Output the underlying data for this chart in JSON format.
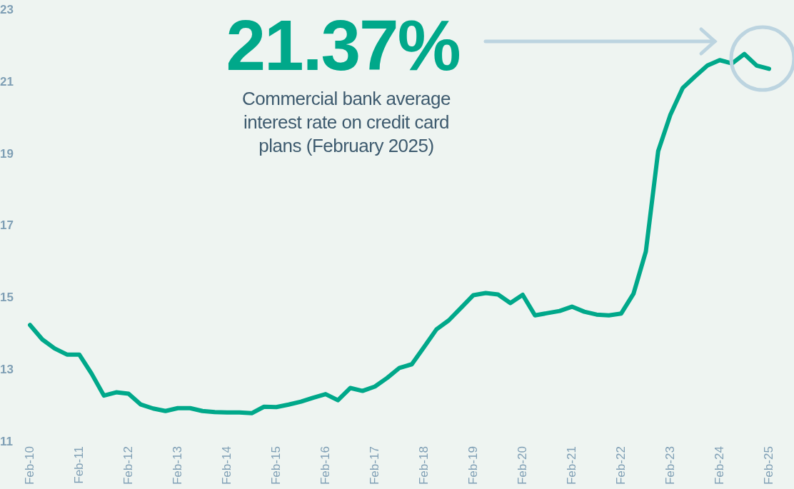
{
  "chart_data": {
    "type": "line",
    "categories": [
      "Feb-10",
      null,
      null,
      null,
      "Feb-11",
      null,
      null,
      null,
      "Feb-12",
      null,
      null,
      null,
      "Feb-13",
      null,
      null,
      null,
      "Feb-14",
      null,
      null,
      null,
      "Feb-15",
      null,
      null,
      null,
      "Feb-16",
      null,
      null,
      null,
      "Feb-17",
      null,
      null,
      null,
      "Feb-18",
      null,
      null,
      null,
      "Feb-19",
      null,
      null,
      null,
      "Feb-20",
      null,
      null,
      null,
      "Feb-21",
      null,
      null,
      null,
      "Feb-22",
      null,
      null,
      null,
      "Feb-23",
      null,
      null,
      null,
      "Feb-24",
      null,
      null,
      null,
      "Feb-25"
    ],
    "series": [
      {
        "color": "#00a88a",
        "values": [
          14.25,
          13.85,
          13.6,
          13.43,
          13.43,
          12.9,
          12.29,
          12.38,
          12.34,
          12.04,
          11.93,
          11.86,
          11.94,
          11.94,
          11.86,
          11.83,
          11.82,
          11.82,
          11.8,
          11.98,
          11.97,
          12.04,
          12.12,
          12.23,
          12.33,
          12.16,
          12.5,
          12.42,
          12.54,
          12.78,
          13.06,
          13.16,
          13.64,
          14.13,
          14.38,
          14.73,
          15.08,
          15.14,
          15.1,
          14.86,
          15.09,
          14.52,
          14.58,
          14.64,
          14.76,
          14.62,
          14.54,
          14.52,
          14.57,
          15.12,
          16.29,
          19.08,
          20.1,
          20.84,
          21.16,
          21.46,
          21.61,
          21.52,
          21.78,
          21.46,
          21.37
        ]
      }
    ],
    "ylim": [
      11,
      23
    ],
    "yticks": [
      11,
      13,
      15,
      17,
      19,
      21,
      23
    ],
    "grid": false,
    "legend": false,
    "marker": "none",
    "line_style": "solid",
    "annotations": [
      "21.37%",
      "Commercial bank average interest rate on credit card plans (February 2025)"
    ]
  }
}
